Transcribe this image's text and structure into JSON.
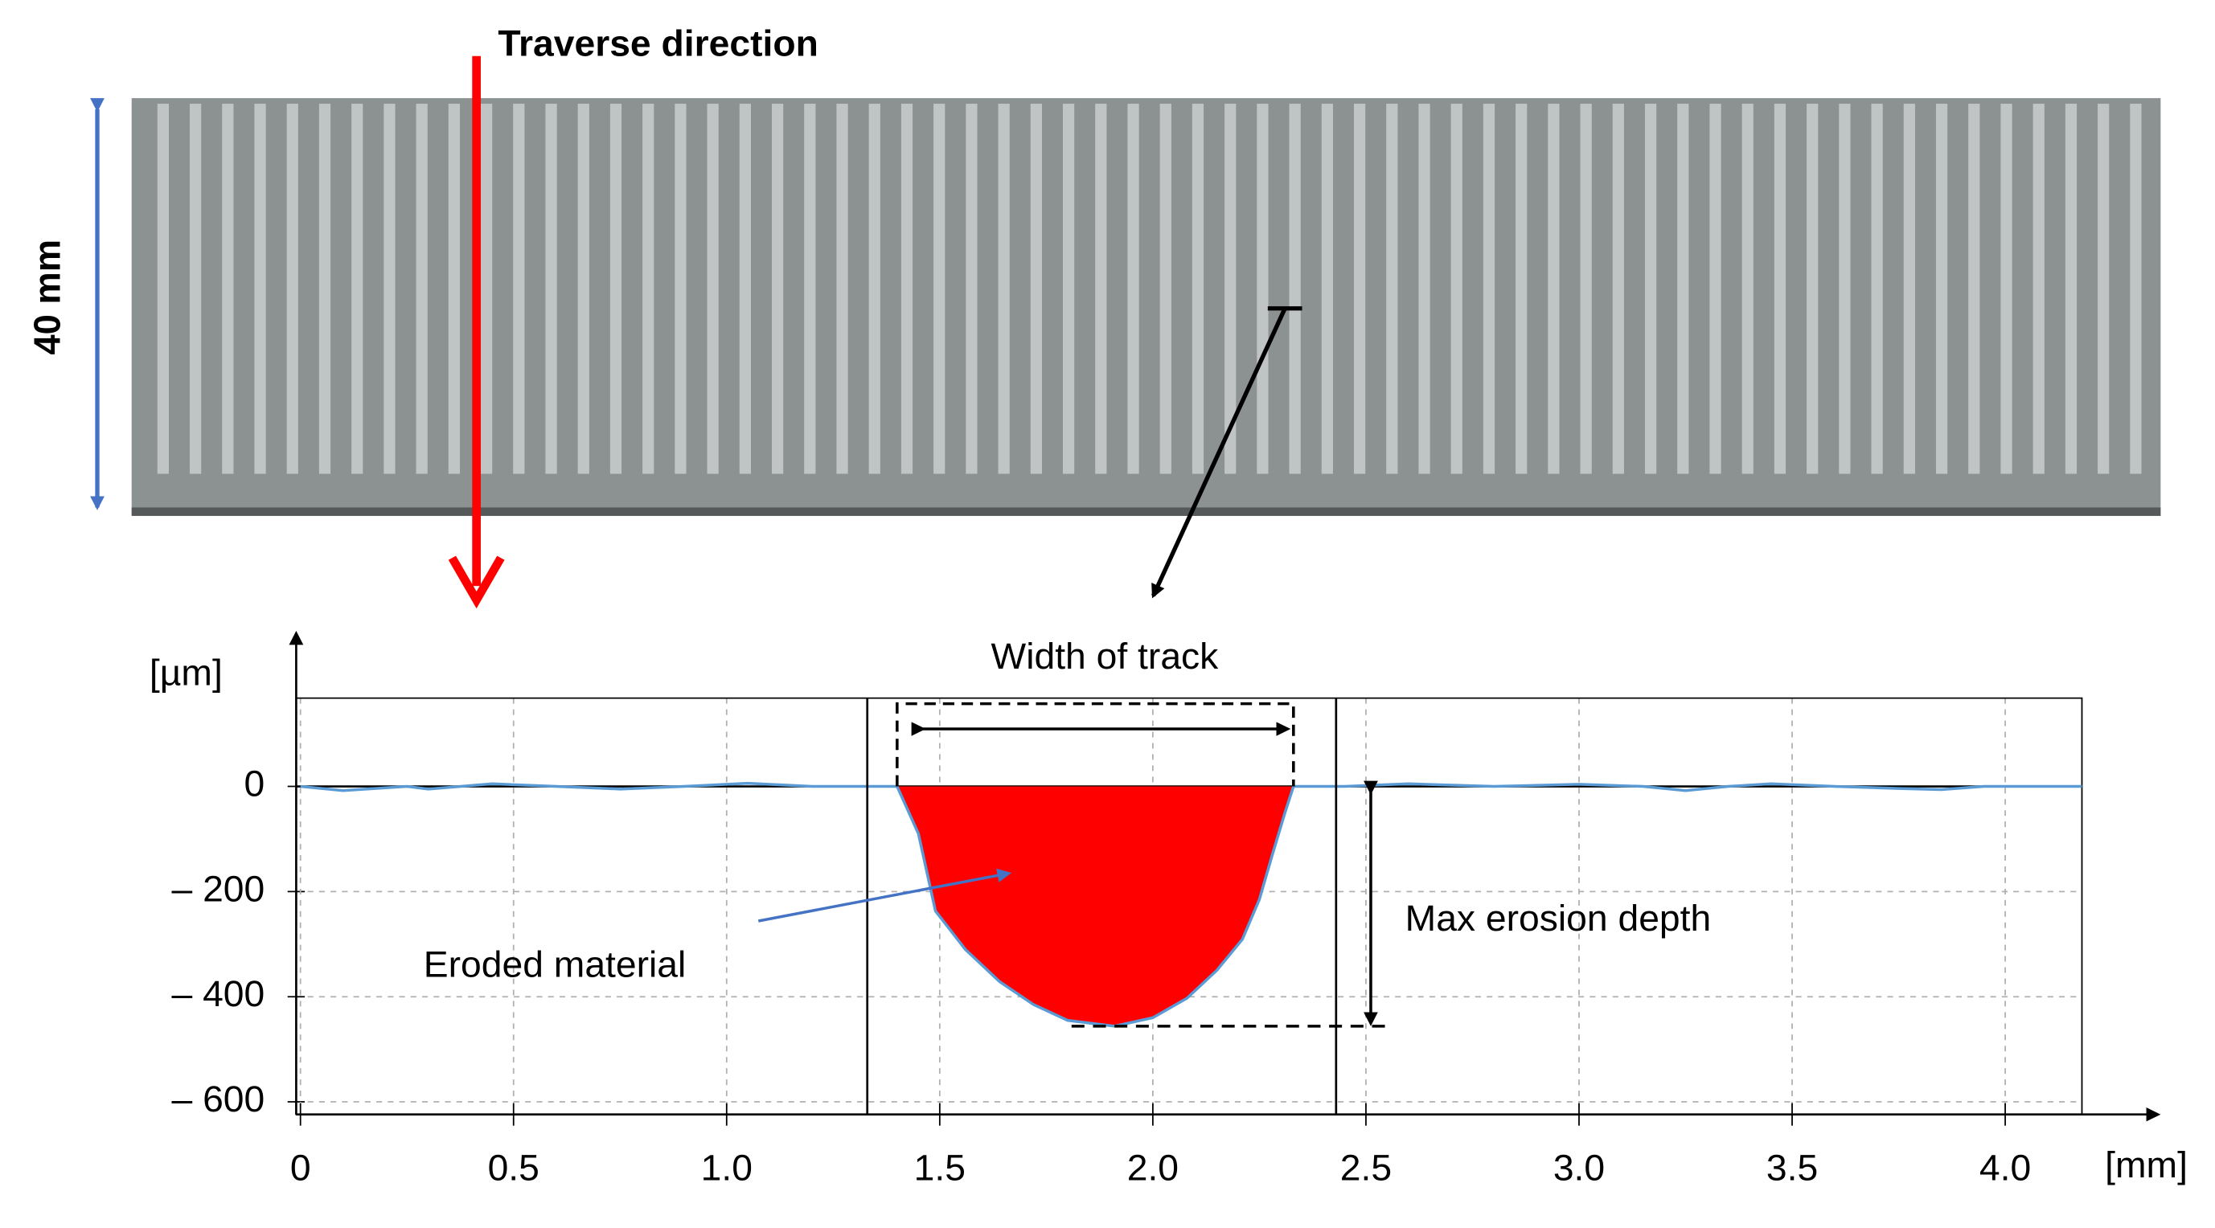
{
  "photo": {
    "label_direction": "Traverse direction",
    "label_width": "40 mm"
  },
  "chart_data": {
    "type": "line",
    "y_unit": "[µm]",
    "x_unit": "[mm]",
    "x": [
      0,
      0.1,
      0.25,
      0.3,
      0.45,
      0.6,
      0.75,
      0.9,
      1.05,
      1.2,
      1.33,
      1.4,
      1.45,
      1.49,
      1.56,
      1.64,
      1.72,
      1.8,
      1.91,
      2.0,
      2.08,
      2.15,
      2.21,
      2.25,
      2.28,
      2.31,
      2.33,
      2.45,
      2.6,
      2.8,
      3.0,
      3.15,
      3.25,
      3.35,
      3.45,
      3.6,
      3.75,
      3.85,
      3.95,
      4.18
    ],
    "values": [
      0,
      -8,
      0,
      -5,
      5,
      0,
      -5,
      0,
      6,
      0,
      0,
      0,
      -90,
      -237,
      -310,
      -371,
      -415,
      -445,
      -456,
      -440,
      -403,
      -350,
      -291,
      -215,
      -131,
      -50,
      0,
      0,
      5,
      0,
      4,
      0,
      -8,
      0,
      5,
      0,
      -4,
      -6,
      0,
      0
    ],
    "color": "#5b9bd5",
    "eroded_region": {
      "from": 1.4,
      "to": 2.33,
      "color": "#ff0000",
      "label": "Eroded material"
    },
    "track_bounds": [
      1.33,
      2.43
    ],
    "width_label": "Width of track",
    "depth_label": "Max erosion depth",
    "xlim": [
      -0.01,
      4.18
    ],
    "ylim": [
      -624,
      168
    ],
    "xticks": [
      0,
      0.5,
      {
        "value": 1,
        "label": "1.0"
      },
      1.5,
      {
        "value": 2,
        "label": "2.0"
      },
      2.5,
      {
        "value": 3,
        "label": "3.0"
      },
      3.5,
      {
        "value": 4,
        "label": "4.0"
      }
    ],
    "yticks": [
      0,
      {
        "value": -200,
        "label": "– 200"
      },
      {
        "value": -400,
        "label": "– 400"
      },
      {
        "value": -600,
        "label": "– 600"
      }
    ],
    "grid": true
  }
}
